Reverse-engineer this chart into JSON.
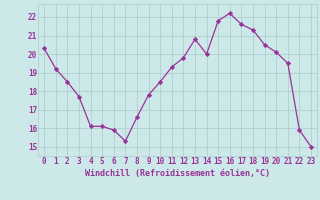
{
  "x": [
    0,
    1,
    2,
    3,
    4,
    5,
    6,
    7,
    8,
    9,
    10,
    11,
    12,
    13,
    14,
    15,
    16,
    17,
    18,
    19,
    20,
    21,
    22,
    23
  ],
  "y": [
    20.3,
    19.2,
    18.5,
    17.7,
    16.1,
    16.1,
    15.9,
    15.3,
    16.6,
    17.8,
    18.5,
    19.3,
    19.8,
    20.8,
    20.0,
    21.8,
    22.2,
    21.6,
    21.3,
    20.5,
    20.1,
    19.5,
    15.9,
    15.0
  ],
  "line_color": "#993399",
  "marker_color": "#993399",
  "bg_color": "#cce8e8",
  "grid_color": "#aacccc",
  "xlabel": "Windchill (Refroidissement éolien,°C)",
  "ylim": [
    14.5,
    22.7
  ],
  "xlim": [
    -0.5,
    23.5
  ],
  "yticks": [
    15,
    16,
    17,
    18,
    19,
    20,
    21,
    22
  ],
  "xtick_labels": [
    "0",
    "1",
    "2",
    "3",
    "4",
    "5",
    "6",
    "7",
    "8",
    "9",
    "10",
    "11",
    "12",
    "13",
    "14",
    "15",
    "16",
    "17",
    "18",
    "19",
    "20",
    "21",
    "22",
    "23"
  ],
  "xlabel_color": "#993399",
  "tick_color": "#993399",
  "font_family": "monospace",
  "tick_fontsize": 5.5,
  "xlabel_fontsize": 6.0
}
